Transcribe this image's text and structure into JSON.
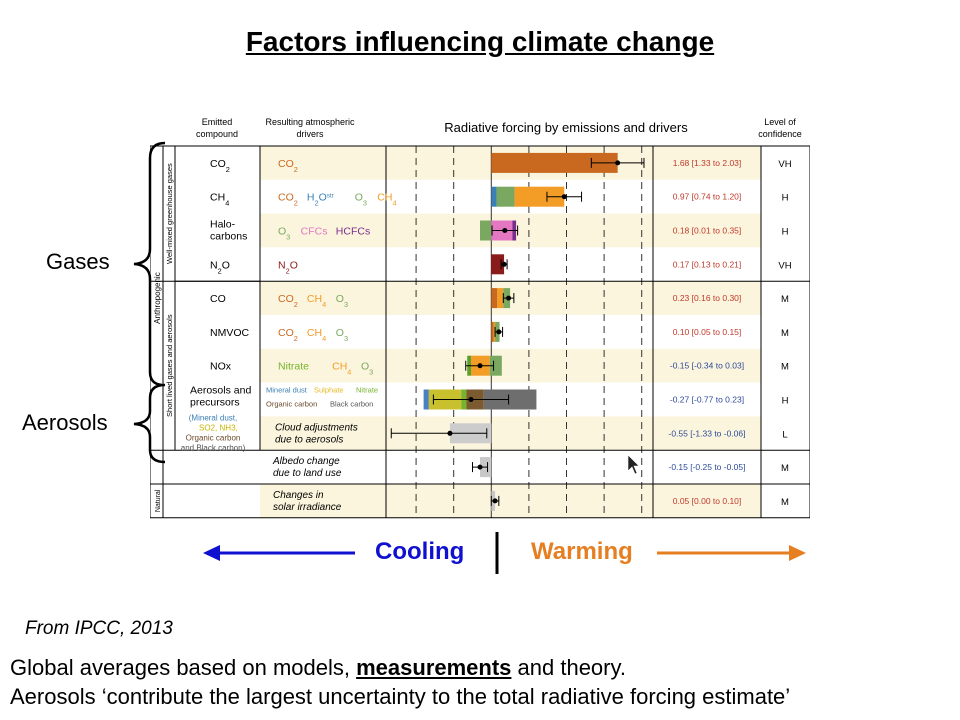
{
  "slide": {
    "title": "Factors influencing climate change",
    "gases_label": "Gases",
    "aerosols_label": "Aerosols",
    "cooling": "Cooling",
    "warming": "Warming",
    "source": "From IPCC, 2013",
    "footer1_pre": "Global averages based on models, ",
    "footer1_bold": "measurements",
    "footer1_post": " and theory.",
    "footer2": "Aerosols ‘contribute the largest uncertainty to the total radiative forcing estimate’"
  },
  "chart_data": {
    "type": "bar",
    "title": "Radiative forcing by emissions and drivers",
    "headers": {
      "emitted": [
        "Emitted",
        "compound"
      ],
      "drivers": [
        "Resulting atmospheric",
        "drivers"
      ],
      "confidence": [
        "Level of",
        "confidence"
      ]
    },
    "group_labels": {
      "anthropogenic": "Anthropogenic",
      "wmghg": "Well-mixed greenhouse gases",
      "short_lived": "Short lived gases and aerosols",
      "natural": "Natural"
    },
    "xlim": [
      -1.4,
      2.15
    ],
    "gridlines": [
      -1.0,
      -0.5,
      0.5,
      1.0,
      1.5,
      2.0
    ],
    "rows": [
      {
        "compound": "CO2",
        "drivers": [
          {
            "text": "CO2",
            "color": "#c8691f"
          }
        ],
        "segments": [
          {
            "driver": "CO2",
            "from": 0,
            "to": 1.68,
            "color": "#c8691f"
          }
        ],
        "value": 1.68,
        "range": [
          1.33,
          2.03
        ],
        "label": "1.68 [1.33 to 2.03]",
        "confidence": "VH"
      },
      {
        "compound": "CH4",
        "drivers": [
          {
            "text": "CO2",
            "color": "#c8691f"
          },
          {
            "text": "H2Ostr",
            "color": "#3a7fb5"
          },
          {
            "text": "O3",
            "color": "#7aa860"
          },
          {
            "text": "CH4",
            "color": "#f39c26"
          }
        ],
        "segments": [
          {
            "driver": "H2Ostr",
            "from": 0,
            "to": 0.07,
            "color": "#3a7fb5"
          },
          {
            "driver": "O3",
            "from": 0.07,
            "to": 0.31,
            "color": "#7aa860"
          },
          {
            "driver": "CH4",
            "from": 0.31,
            "to": 0.97,
            "color": "#f39c26"
          }
        ],
        "value": 0.97,
        "range": [
          0.74,
          1.2
        ],
        "label": "0.97 [0.74 to 1.20]",
        "confidence": "H"
      },
      {
        "compound": "Halo-carbons",
        "drivers": [
          {
            "text": "O3",
            "color": "#7aa860"
          },
          {
            "text": "CFCs",
            "color": "#e377c2"
          },
          {
            "text": "HCFCs",
            "color": "#7b2d8e"
          }
        ],
        "segments": [
          {
            "driver": "O3",
            "from": -0.15,
            "to": 0,
            "color": "#7aa860"
          },
          {
            "driver": "CFCs",
            "from": 0,
            "to": 0.28,
            "color": "#e377c2"
          },
          {
            "driver": "HCFCs",
            "from": 0.28,
            "to": 0.33,
            "color": "#7b2d8e"
          }
        ],
        "value": 0.18,
        "range": [
          0.01,
          0.35
        ],
        "label": "0.18 [0.01 to 0.35]",
        "confidence": "H"
      },
      {
        "compound": "N2O",
        "drivers": [
          {
            "text": "N2O",
            "color": "#8b1a1a"
          }
        ],
        "segments": [
          {
            "driver": "N2O",
            "from": 0,
            "to": 0.17,
            "color": "#8b1a1a"
          }
        ],
        "value": 0.17,
        "range": [
          0.13,
          0.21
        ],
        "label": "0.17 [0.13 to 0.21]",
        "confidence": "VH"
      },
      {
        "compound": "CO",
        "drivers": [
          {
            "text": "CO2",
            "color": "#c8691f"
          },
          {
            "text": "CH4",
            "color": "#f39c26"
          },
          {
            "text": "O3",
            "color": "#7aa860"
          }
        ],
        "segments": [
          {
            "driver": "CO2",
            "from": 0,
            "to": 0.08,
            "color": "#c8691f"
          },
          {
            "driver": "CH4",
            "from": 0.08,
            "to": 0.16,
            "color": "#f39c26"
          },
          {
            "driver": "O3",
            "from": 0.16,
            "to": 0.25,
            "color": "#7aa860"
          }
        ],
        "value": 0.23,
        "range": [
          0.16,
          0.3
        ],
        "label": "0.23 [0.16 to 0.30]",
        "confidence": "M"
      },
      {
        "compound": "NMVOC",
        "drivers": [
          {
            "text": "CO2",
            "color": "#c8691f"
          },
          {
            "text": "CH4",
            "color": "#f39c26"
          },
          {
            "text": "O3",
            "color": "#7aa860"
          }
        ],
        "segments": [
          {
            "driver": "CO2",
            "from": 0,
            "to": 0.03,
            "color": "#c8691f"
          },
          {
            "driver": "CH4",
            "from": 0.03,
            "to": 0.05,
            "color": "#f39c26"
          },
          {
            "driver": "O3",
            "from": 0.05,
            "to": 0.11,
            "color": "#7aa860"
          }
        ],
        "value": 0.1,
        "range": [
          0.05,
          0.15
        ],
        "label": "0.10 [0.05 to 0.15]",
        "confidence": "M"
      },
      {
        "compound": "NOx",
        "drivers": [
          {
            "text": "Nitrate",
            "color": "#77b32d"
          },
          {
            "text": "CH4",
            "color": "#f39c26"
          },
          {
            "text": "O3",
            "color": "#7aa860"
          }
        ],
        "segments": [
          {
            "driver": "Nitrate",
            "from": -0.32,
            "to": -0.27,
            "color": "#5aa02c"
          },
          {
            "driver": "CH4",
            "from": -0.27,
            "to": -0.02,
            "color": "#f39c26"
          },
          {
            "driver": "O3",
            "from": -0.02,
            "to": 0.14,
            "color": "#7aa860"
          }
        ],
        "value": -0.15,
        "range": [
          -0.34,
          0.03
        ],
        "label": "-0.15 [-0.34 to 0.03]",
        "confidence": "M"
      },
      {
        "compound": "Aerosols and precursors",
        "compound_sub": [
          "(Mineral dust,",
          "SO2, NH3,",
          "Organic carbon",
          "and Black carbon)"
        ],
        "drivers": [
          {
            "text": "Mineral dust",
            "color": "#3a7fb5"
          },
          {
            "text": "Sulphate",
            "color": "#e8b923"
          },
          {
            "text": "Nitrate",
            "color": "#77b32d"
          },
          {
            "text": "Organic carbon",
            "color": "#6b4a2b"
          },
          {
            "text": "Black carbon",
            "color": "#555555"
          }
        ],
        "segments": [
          {
            "driver": "Mineral dust",
            "from": -0.9,
            "to": -0.83,
            "color": "#4a7fc1"
          },
          {
            "driver": "Sulphate",
            "from": -0.83,
            "to": -0.4,
            "color": "#c8c12d"
          },
          {
            "driver": "Nitrate",
            "from": -0.4,
            "to": -0.33,
            "color": "#77b32d"
          },
          {
            "driver": "Organic carbon",
            "from": -0.33,
            "to": -0.1,
            "color": "#7a5a2e"
          },
          {
            "driver": "Black carbon",
            "from": -0.1,
            "to": 0.6,
            "color": "#6e6e6e"
          }
        ],
        "value": -0.27,
        "range": [
          -0.77,
          0.23
        ],
        "label": "-0.27 [-0.77 to 0.23]",
        "confidence": "H"
      },
      {
        "compound": "Cloud adjustments due to aerosols",
        "drivers": [],
        "segments": [
          {
            "driver": "Cloud adjustments",
            "from": -0.55,
            "to": 0,
            "color": "#cccccc"
          }
        ],
        "value": -0.55,
        "range": [
          -1.33,
          -0.06
        ],
        "label": "-0.55 [-1.33 to -0.06]",
        "confidence": "L"
      },
      {
        "compound": "Albedo change due to land use",
        "drivers": [],
        "segments": [
          {
            "driver": "Albedo",
            "from": -0.15,
            "to": 0,
            "color": "#c8c8c8"
          }
        ],
        "value": -0.15,
        "range": [
          -0.25,
          -0.05
        ],
        "label": "-0.15 [-0.25 to -0.05]",
        "confidence": "M"
      },
      {
        "compound": "Changes in solar irradiance",
        "drivers": [],
        "segments": [
          {
            "driver": "Solar",
            "from": 0,
            "to": 0.05,
            "color": "#c8c8c8"
          }
        ],
        "value": 0.05,
        "range": [
          0.0,
          0.1
        ],
        "label": "0.05 [0.00 to 0.10]",
        "confidence": "M"
      }
    ]
  }
}
